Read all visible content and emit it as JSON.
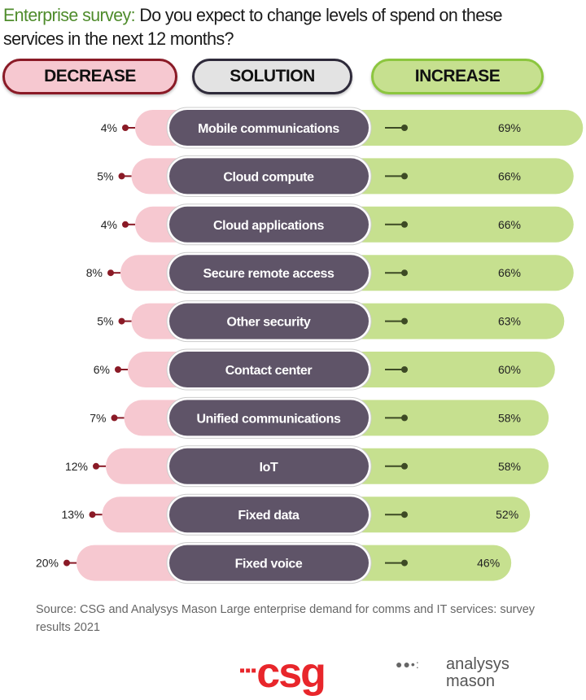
{
  "title": {
    "highlight": "Enterprise survey:",
    "text": " Do you expect to change levels of spend on these services in the next 12 months?"
  },
  "headers": {
    "decrease": "DECREASE",
    "solution": "SOLUTION",
    "increase": "INCREASE"
  },
  "colors": {
    "decrease_fill": "#f6c8d0",
    "decrease_border": "#8a1a26",
    "solution_fill": "#5f5468",
    "increase_fill": "#c6e08f",
    "increase_border": "#8cc63f",
    "dot_red": "#8a1a26",
    "dot_green": "#3d4a25"
  },
  "chart_data": {
    "type": "bar",
    "title": "Enterprise survey: Do you expect to change levels of spend on these services in the next 12 months?",
    "categories": [
      "Mobile communications",
      "Cloud compute",
      "Cloud applications",
      "Secure remote access",
      "Other security",
      "Contact center",
      "Unified communications",
      "IoT",
      "Fixed data",
      "Fixed voice"
    ],
    "series": [
      {
        "name": "DECREASE",
        "values": [
          4,
          5,
          4,
          8,
          5,
          6,
          7,
          12,
          13,
          20
        ]
      },
      {
        "name": "INCREASE",
        "values": [
          69,
          66,
          66,
          66,
          63,
          60,
          58,
          58,
          52,
          46
        ]
      }
    ],
    "unit": "%"
  },
  "source": "Source: CSG and Analysys Mason Large enterprise demand for comms and IT services: survey results 2021",
  "logos": {
    "csg": "csg",
    "analysys": "analysys",
    "mason": "mason"
  }
}
